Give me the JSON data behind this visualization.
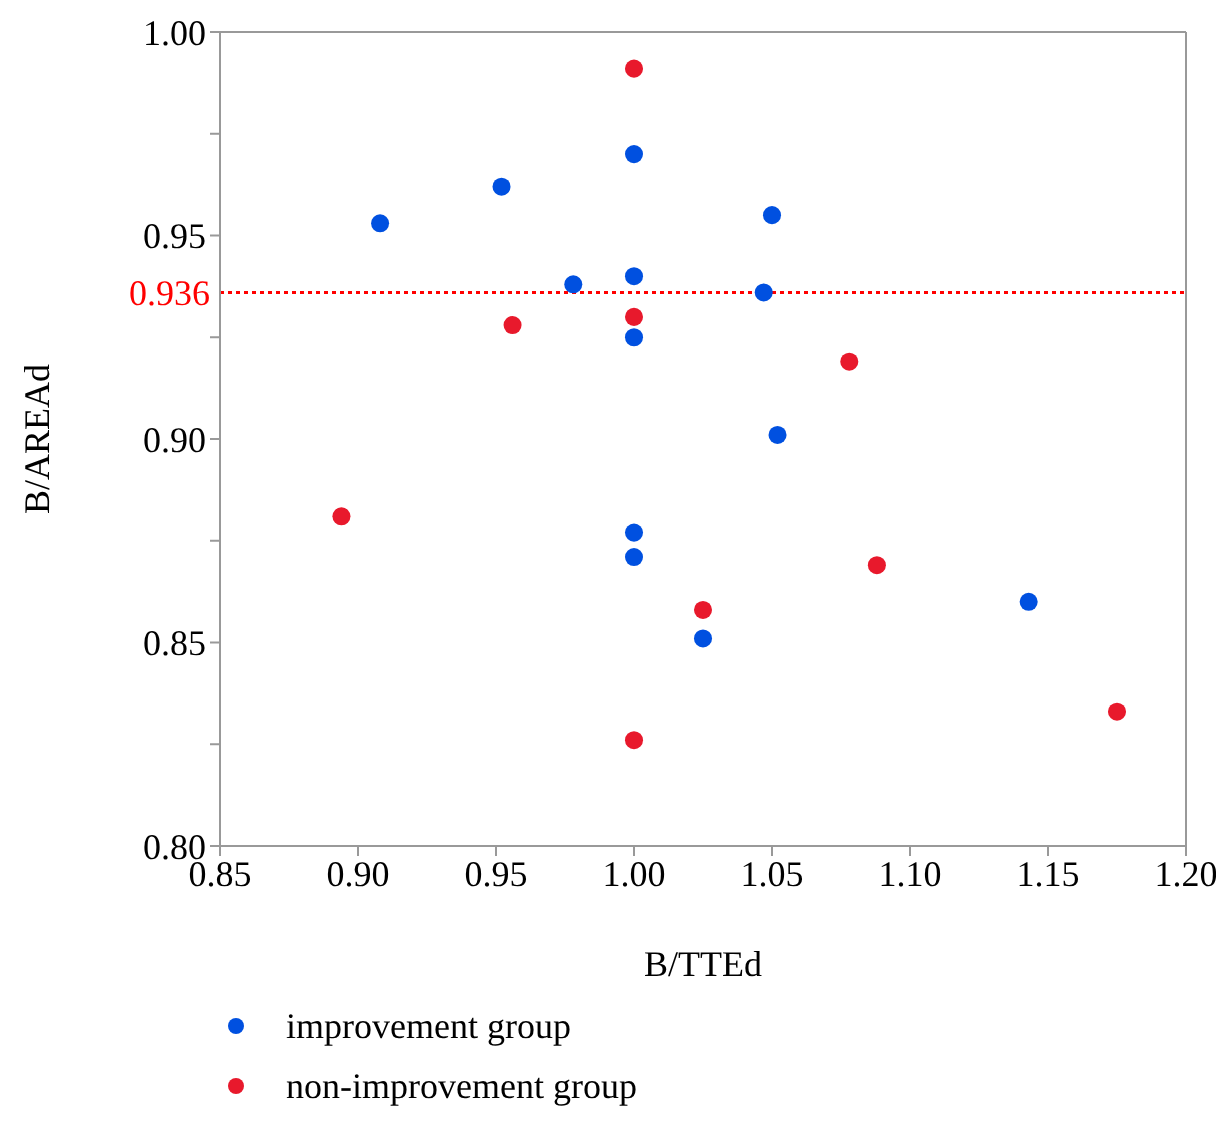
{
  "chart_data": {
    "type": "scatter",
    "xlabel": "B/TTEd",
    "ylabel": "B/AREAd",
    "xlim": [
      0.85,
      1.2
    ],
    "xticks": [
      0.85,
      {
        "value": 0.9,
        "label": "0.90"
      },
      0.95,
      {
        "value": 1.0,
        "label": "1.00"
      },
      1.05,
      {
        "value": 1.1,
        "label": "1.10"
      },
      1.15,
      {
        "value": 1.2,
        "label": "1.20"
      }
    ],
    "ylim": [
      0.8,
      1.0
    ],
    "yticks": [
      {
        "value": 0.8,
        "label": "0.80"
      },
      {
        "value": 0.825,
        "label": null
      },
      {
        "value": 0.85,
        "label": "0.85"
      },
      {
        "value": 0.875,
        "label": null
      },
      {
        "value": 0.9,
        "label": "0.90"
      },
      {
        "value": 0.925,
        "label": null
      },
      {
        "value": 0.95,
        "label": "0.95"
      },
      {
        "value": 0.975,
        "label": null
      },
      {
        "value": 1.0,
        "label": "1.00"
      }
    ],
    "grid": false,
    "legend": "bottom",
    "marker": "circle",
    "ref_lines": [
      {
        "axis": "y",
        "value": 0.936,
        "label": "0.936",
        "color": "#ff0000",
        "line_style": "dotted"
      }
    ],
    "series": [
      {
        "name": "improvement group",
        "color": "#0050e0",
        "x": [
          0.908,
          0.952,
          1.0,
          1.05,
          0.978,
          1.0,
          1.047,
          1.0,
          1.052,
          1.0,
          1.0,
          1.025,
          1.143
        ],
        "values": [
          0.953,
          0.962,
          0.97,
          0.955,
          0.938,
          0.94,
          0.936,
          0.925,
          0.901,
          0.877,
          0.871,
          0.851,
          0.86
        ]
      },
      {
        "name": "non-improvement group",
        "color": "#e8192c",
        "x": [
          1.0,
          0.956,
          1.0,
          1.078,
          0.894,
          1.025,
          1.088,
          1.0,
          1.175
        ],
        "values": [
          0.991,
          0.928,
          0.93,
          0.919,
          0.881,
          0.858,
          0.869,
          0.826,
          0.833
        ]
      }
    ]
  }
}
